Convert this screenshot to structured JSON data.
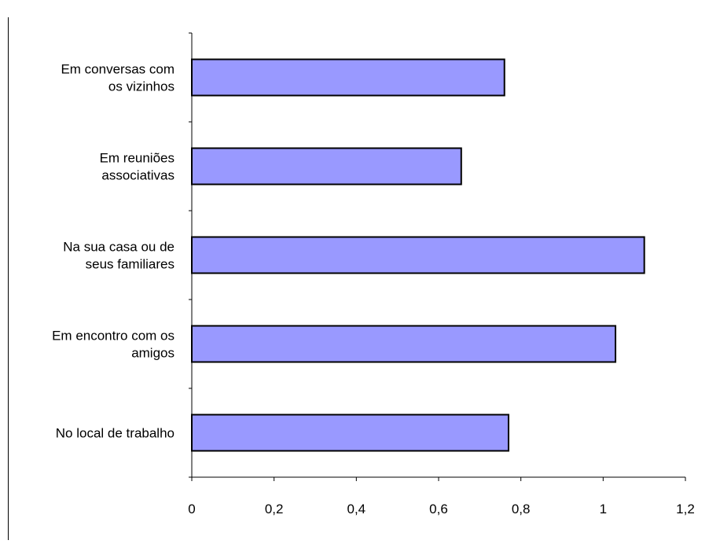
{
  "chart_data": {
    "type": "bar",
    "orientation": "horizontal",
    "categories": [
      [
        "Em conversas com",
        "os vizinhos"
      ],
      [
        "Em reuniões",
        "associativas"
      ],
      [
        "Na sua casa ou de",
        "seus familiares"
      ],
      [
        "Em encontro com os",
        "amigos"
      ],
      [
        "No local de trabalho"
      ]
    ],
    "values": [
      0.76,
      0.655,
      1.1,
      1.03,
      0.77
    ],
    "xlim": [
      0,
      1.2
    ],
    "ticks": [
      "0",
      "0,2",
      "0,4",
      "0,6",
      "0,8",
      "1",
      "1,2"
    ],
    "title": "",
    "xlabel": "",
    "ylabel": "",
    "bar_color": "#9999ff",
    "bar_border_color": "#000000",
    "grid": false,
    "legend": "none"
  }
}
